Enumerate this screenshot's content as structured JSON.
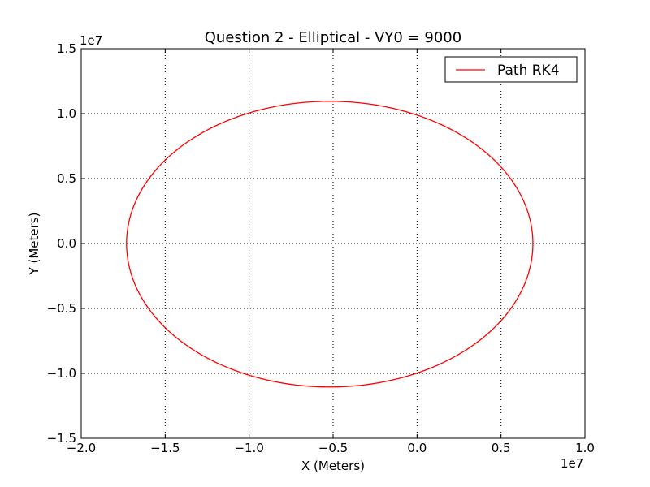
{
  "chart_data": {
    "type": "line",
    "title": "Question 2 - Elliptical - VY0 = 9000",
    "xlabel": "X (Meters)",
    "ylabel": "Y (Meters)",
    "x_offset_label": "1e7",
    "y_offset_label": "1e7",
    "xlim": [
      -2.0,
      1.0
    ],
    "ylim": [
      -1.5,
      1.5
    ],
    "xticks": [
      -2.0,
      -1.5,
      -1.0,
      -0.5,
      0.0,
      0.5,
      1.0
    ],
    "yticks": [
      -1.5,
      -1.0,
      -0.5,
      0.0,
      0.5,
      1.0,
      1.5
    ],
    "xtick_labels": [
      "−2.0",
      "−1.5",
      "−1.0",
      "−0.5",
      "0.0",
      "0.5",
      "1.0"
    ],
    "ytick_labels": [
      "−1.5",
      "−1.0",
      "−0.5",
      "0.0",
      "0.5",
      "1.0",
      "1.5"
    ],
    "grid": true,
    "legend_position": "top-right",
    "series": [
      {
        "name": "Path RK4",
        "color": "#ff0000",
        "shape": "ellipse",
        "center": [
          -0.52,
          0.0
        ],
        "x_range": [
          -1.73,
          0.69
        ],
        "y_range": [
          -1.105,
          1.095
        ]
      }
    ]
  }
}
